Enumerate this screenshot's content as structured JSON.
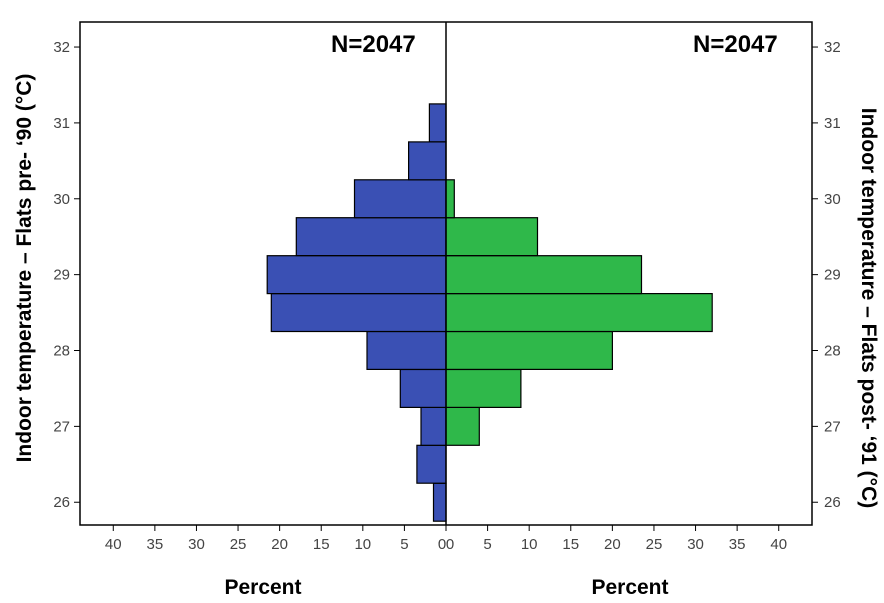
{
  "chart_data": {
    "type": "bar",
    "orientation": "horizontal",
    "layout": "back-to-back histogram",
    "bin_centers": [
      26,
      26.5,
      27,
      27.5,
      28,
      28.5,
      29,
      29.5,
      30,
      30.5,
      31
    ],
    "series": [
      {
        "side": "left",
        "values": [
          1.5,
          3.5,
          3,
          5.5,
          9.5,
          21,
          21.5,
          18,
          11,
          4.5,
          2
        ],
        "color": "#3a50b4"
      },
      {
        "side": "right",
        "values": [
          0,
          0,
          4,
          9,
          20,
          32,
          23.5,
          11,
          1,
          0,
          0
        ],
        "color": "#2fb84a"
      }
    ],
    "annotations": {
      "left": "N=2047",
      "right": "N=2047"
    },
    "left_ylabel": "Indoor temperature – Flats pre- ‘90 (°C)",
    "right_ylabel": "Indoor temperature – Flats post- ‘91 (°C)",
    "left_xlabel": "Percent",
    "right_xlabel": "Percent",
    "y_ticks": [
      "26",
      "27",
      "28",
      "29",
      "30",
      "31",
      "32"
    ],
    "x_ticks_left": [
      "40",
      "35",
      "30",
      "25",
      "20",
      "15",
      "10",
      "5",
      "0"
    ],
    "x_ticks_right": [
      "0",
      "5",
      "10",
      "15",
      "20",
      "25",
      "30",
      "35",
      "40"
    ],
    "x_range_percent": [
      0,
      44
    ],
    "y_range": [
      25.7,
      32.33
    ],
    "grid": false,
    "legend": false
  }
}
